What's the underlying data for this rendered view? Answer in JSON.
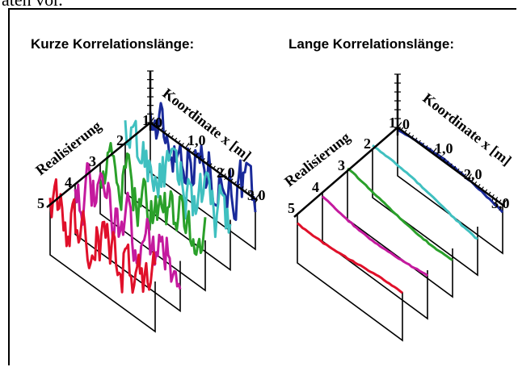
{
  "top_text": "aten vor.",
  "colors": [
    "#e0102a",
    "#c41a9e",
    "#2aa02a",
    "#40c0c0",
    "#1a2a9a"
  ],
  "panels": [
    {
      "title": "Kurze Korrelationslänge:",
      "axis_label_realisation": "Realisierung",
      "axis_label_coordinate": "Koordinate x [m]",
      "realisation_ticks": [
        "1",
        "2",
        "3",
        "4",
        "5"
      ],
      "coordinate_ticks": [
        "0",
        "1,0",
        "2,0",
        "3,0"
      ],
      "correlation": "short"
    },
    {
      "title": "Lange Korrelationslänge:",
      "axis_label_realisation": "Realisierung",
      "axis_label_coordinate": "Koordinate x [m]",
      "realisation_ticks": [
        "1",
        "2",
        "3",
        "4",
        "5"
      ],
      "coordinate_ticks": [
        "0",
        "1,0",
        "2,0",
        "3,0"
      ],
      "correlation": "long"
    }
  ]
}
